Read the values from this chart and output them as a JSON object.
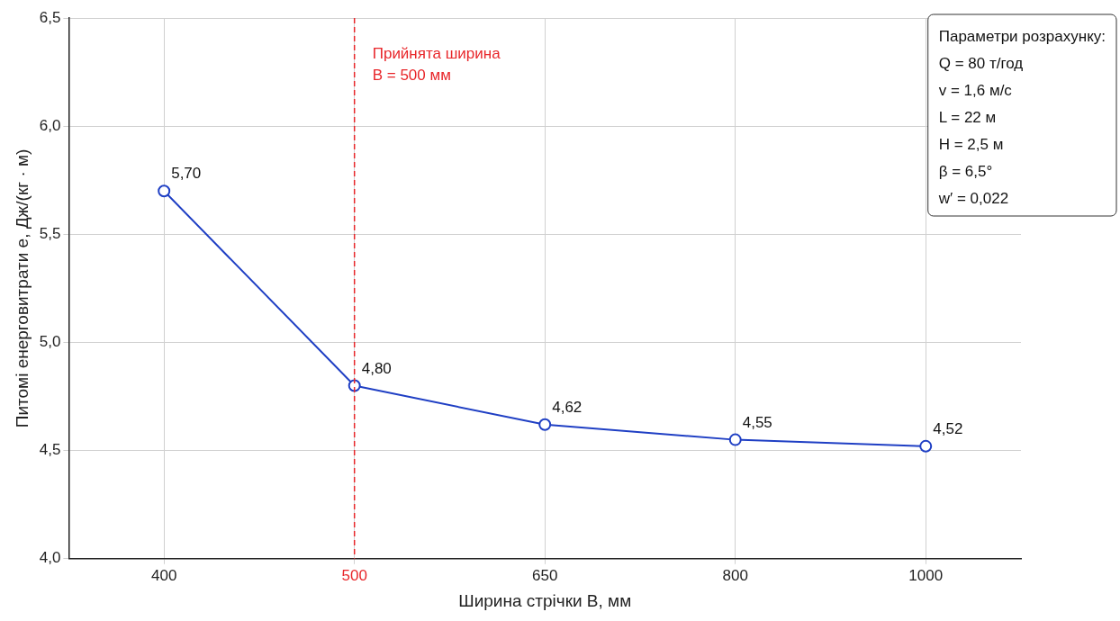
{
  "chart_data": {
    "type": "line",
    "xlabel": "Ширина стрічки B, мм",
    "ylabel": "Питомі енерговитрати e, Дж/(кг · м)",
    "categories": [
      "400",
      "500",
      "650",
      "800",
      "1000"
    ],
    "series": [
      {
        "color": "#1f3fc4",
        "values": [
          5.7,
          4.8,
          4.62,
          4.55,
          4.52
        ],
        "value_labels": [
          "5,70",
          "4,80",
          "4,62",
          "4,55",
          "4,52"
        ]
      }
    ],
    "ylim": [
      4.0,
      6.5
    ],
    "yticks": [
      {
        "value": 4.0,
        "label": "4,0"
      },
      {
        "value": 4.5,
        "label": "4,5"
      },
      {
        "value": 5.0,
        "label": "5,0"
      },
      {
        "value": 5.5,
        "label": "5,5"
      },
      {
        "value": 6.0,
        "label": "6,0"
      },
      {
        "value": 6.5,
        "label": "6,5"
      }
    ],
    "grid": true,
    "legend": false,
    "marker": "circle",
    "line_style": "solid",
    "ref_lines": [
      {
        "axis": "x",
        "value": "500",
        "label": "Прийнята ширина\nB = 500 мм",
        "color": "#e8262a",
        "line_style": "dashed"
      }
    ],
    "annotations": [
      "Параметри розрахунку:\nQ = 80 т/год\nv = 1,6 м/с\nL = 22 м\nH = 2,5 м\nβ = 6,5°\nw′ = 0,022"
    ]
  }
}
